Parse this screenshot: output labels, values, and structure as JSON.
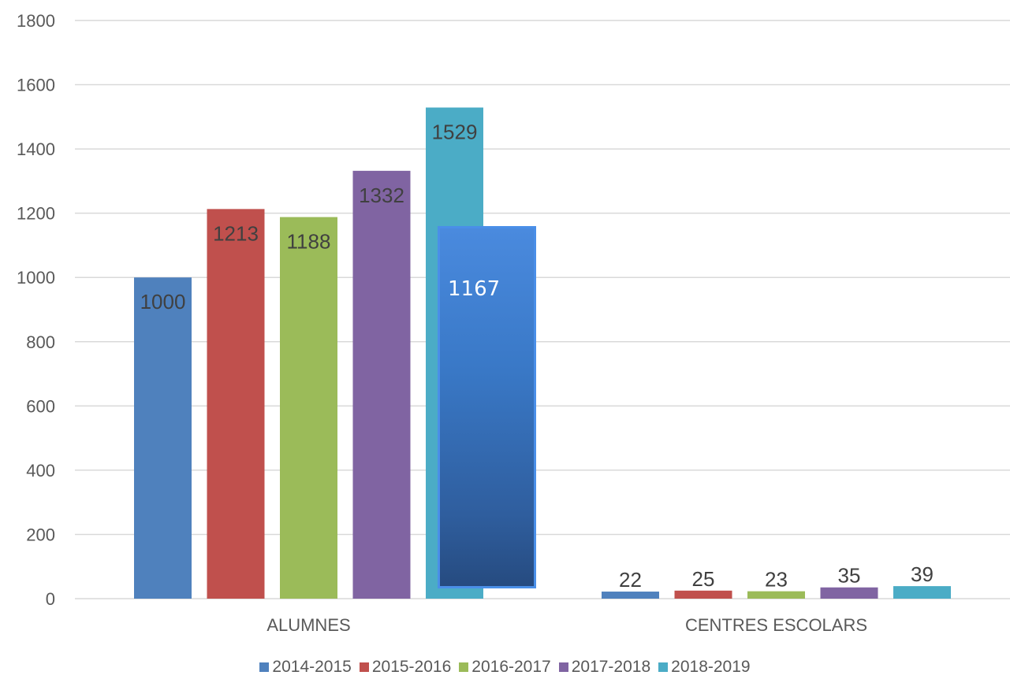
{
  "chart_data": {
    "type": "bar",
    "categories": [
      "ALUMNES",
      "CENTRES ESCOLARS"
    ],
    "series": [
      {
        "name": "2014-2015",
        "values": [
          1000,
          22
        ],
        "color": "#4f81bd"
      },
      {
        "name": "2015-2016",
        "values": [
          1213,
          25
        ],
        "color": "#c0504d"
      },
      {
        "name": "2016-2017",
        "values": [
          1188,
          23
        ],
        "color": "#9bbb59"
      },
      {
        "name": "2017-2018",
        "values": [
          1332,
          35
        ],
        "color": "#8064a2"
      },
      {
        "name": "2018-2019",
        "values": [
          1529,
          39
        ],
        "color": "#4bacc6"
      }
    ],
    "yticks": [
      "0",
      "200",
      "400",
      "600",
      "800",
      "1000",
      "1200",
      "1400",
      "1600",
      "1800"
    ],
    "ylim": [
      0,
      1800
    ],
    "grid": true,
    "legend_position": "bottom",
    "overlay": {
      "label": "1167",
      "value": 1167
    }
  }
}
